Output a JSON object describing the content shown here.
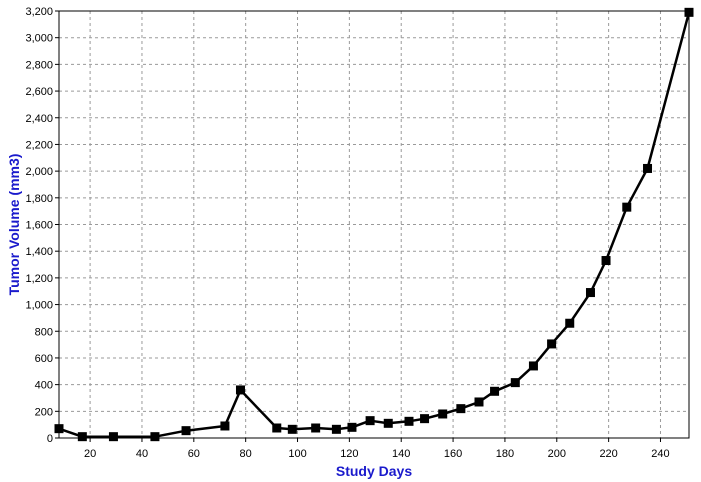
{
  "chart_data": {
    "type": "line",
    "title": "",
    "xlabel": "Study Days",
    "ylabel": "Tumor Volume (mm3)",
    "xlim": [
      8,
      251
    ],
    "ylim": [
      0,
      3200
    ],
    "x_ticks": [
      20,
      40,
      60,
      80,
      100,
      120,
      140,
      160,
      180,
      200,
      220,
      240
    ],
    "x_tick_labels": [
      "20",
      "40",
      "60",
      "80",
      "100",
      "120",
      "140",
      "160",
      "180",
      "200",
      "220",
      "240"
    ],
    "y_ticks": [
      0,
      200,
      400,
      600,
      800,
      1000,
      1200,
      1400,
      1600,
      1800,
      2000,
      2200,
      2400,
      2600,
      2800,
      3000,
      3200
    ],
    "y_tick_labels": [
      "0",
      "200",
      "400",
      "600",
      "800",
      "1,000",
      "1,200",
      "1,400",
      "1,600",
      "1,800",
      "2,000",
      "2,200",
      "2,400",
      "2,600",
      "2,800",
      "3,000",
      "3,200"
    ],
    "grid": true,
    "legend": "none",
    "series": [
      {
        "color": "#000000",
        "marker": "square",
        "points": [
          {
            "x": 8,
            "y": 70
          },
          {
            "x": 17,
            "y": 10
          },
          {
            "x": 29,
            "y": 10
          },
          {
            "x": 45,
            "y": 10
          },
          {
            "x": 57,
            "y": 55
          },
          {
            "x": 72,
            "y": 90
          },
          {
            "x": 78,
            "y": 360
          },
          {
            "x": 92,
            "y": 75
          },
          {
            "x": 98,
            "y": 65
          },
          {
            "x": 107,
            "y": 75
          },
          {
            "x": 115,
            "y": 65
          },
          {
            "x": 121,
            "y": 80
          },
          {
            "x": 128,
            "y": 130
          },
          {
            "x": 135,
            "y": 110
          },
          {
            "x": 143,
            "y": 125
          },
          {
            "x": 149,
            "y": 145
          },
          {
            "x": 156,
            "y": 180
          },
          {
            "x": 163,
            "y": 220
          },
          {
            "x": 170,
            "y": 270
          },
          {
            "x": 176,
            "y": 350
          },
          {
            "x": 184,
            "y": 415
          },
          {
            "x": 191,
            "y": 540
          },
          {
            "x": 198,
            "y": 705
          },
          {
            "x": 205,
            "y": 860
          },
          {
            "x": 213,
            "y": 1090
          },
          {
            "x": 219,
            "y": 1330
          },
          {
            "x": 227,
            "y": 1730
          },
          {
            "x": 235,
            "y": 2020
          },
          {
            "x": 251,
            "y": 3190
          }
        ]
      }
    ]
  }
}
